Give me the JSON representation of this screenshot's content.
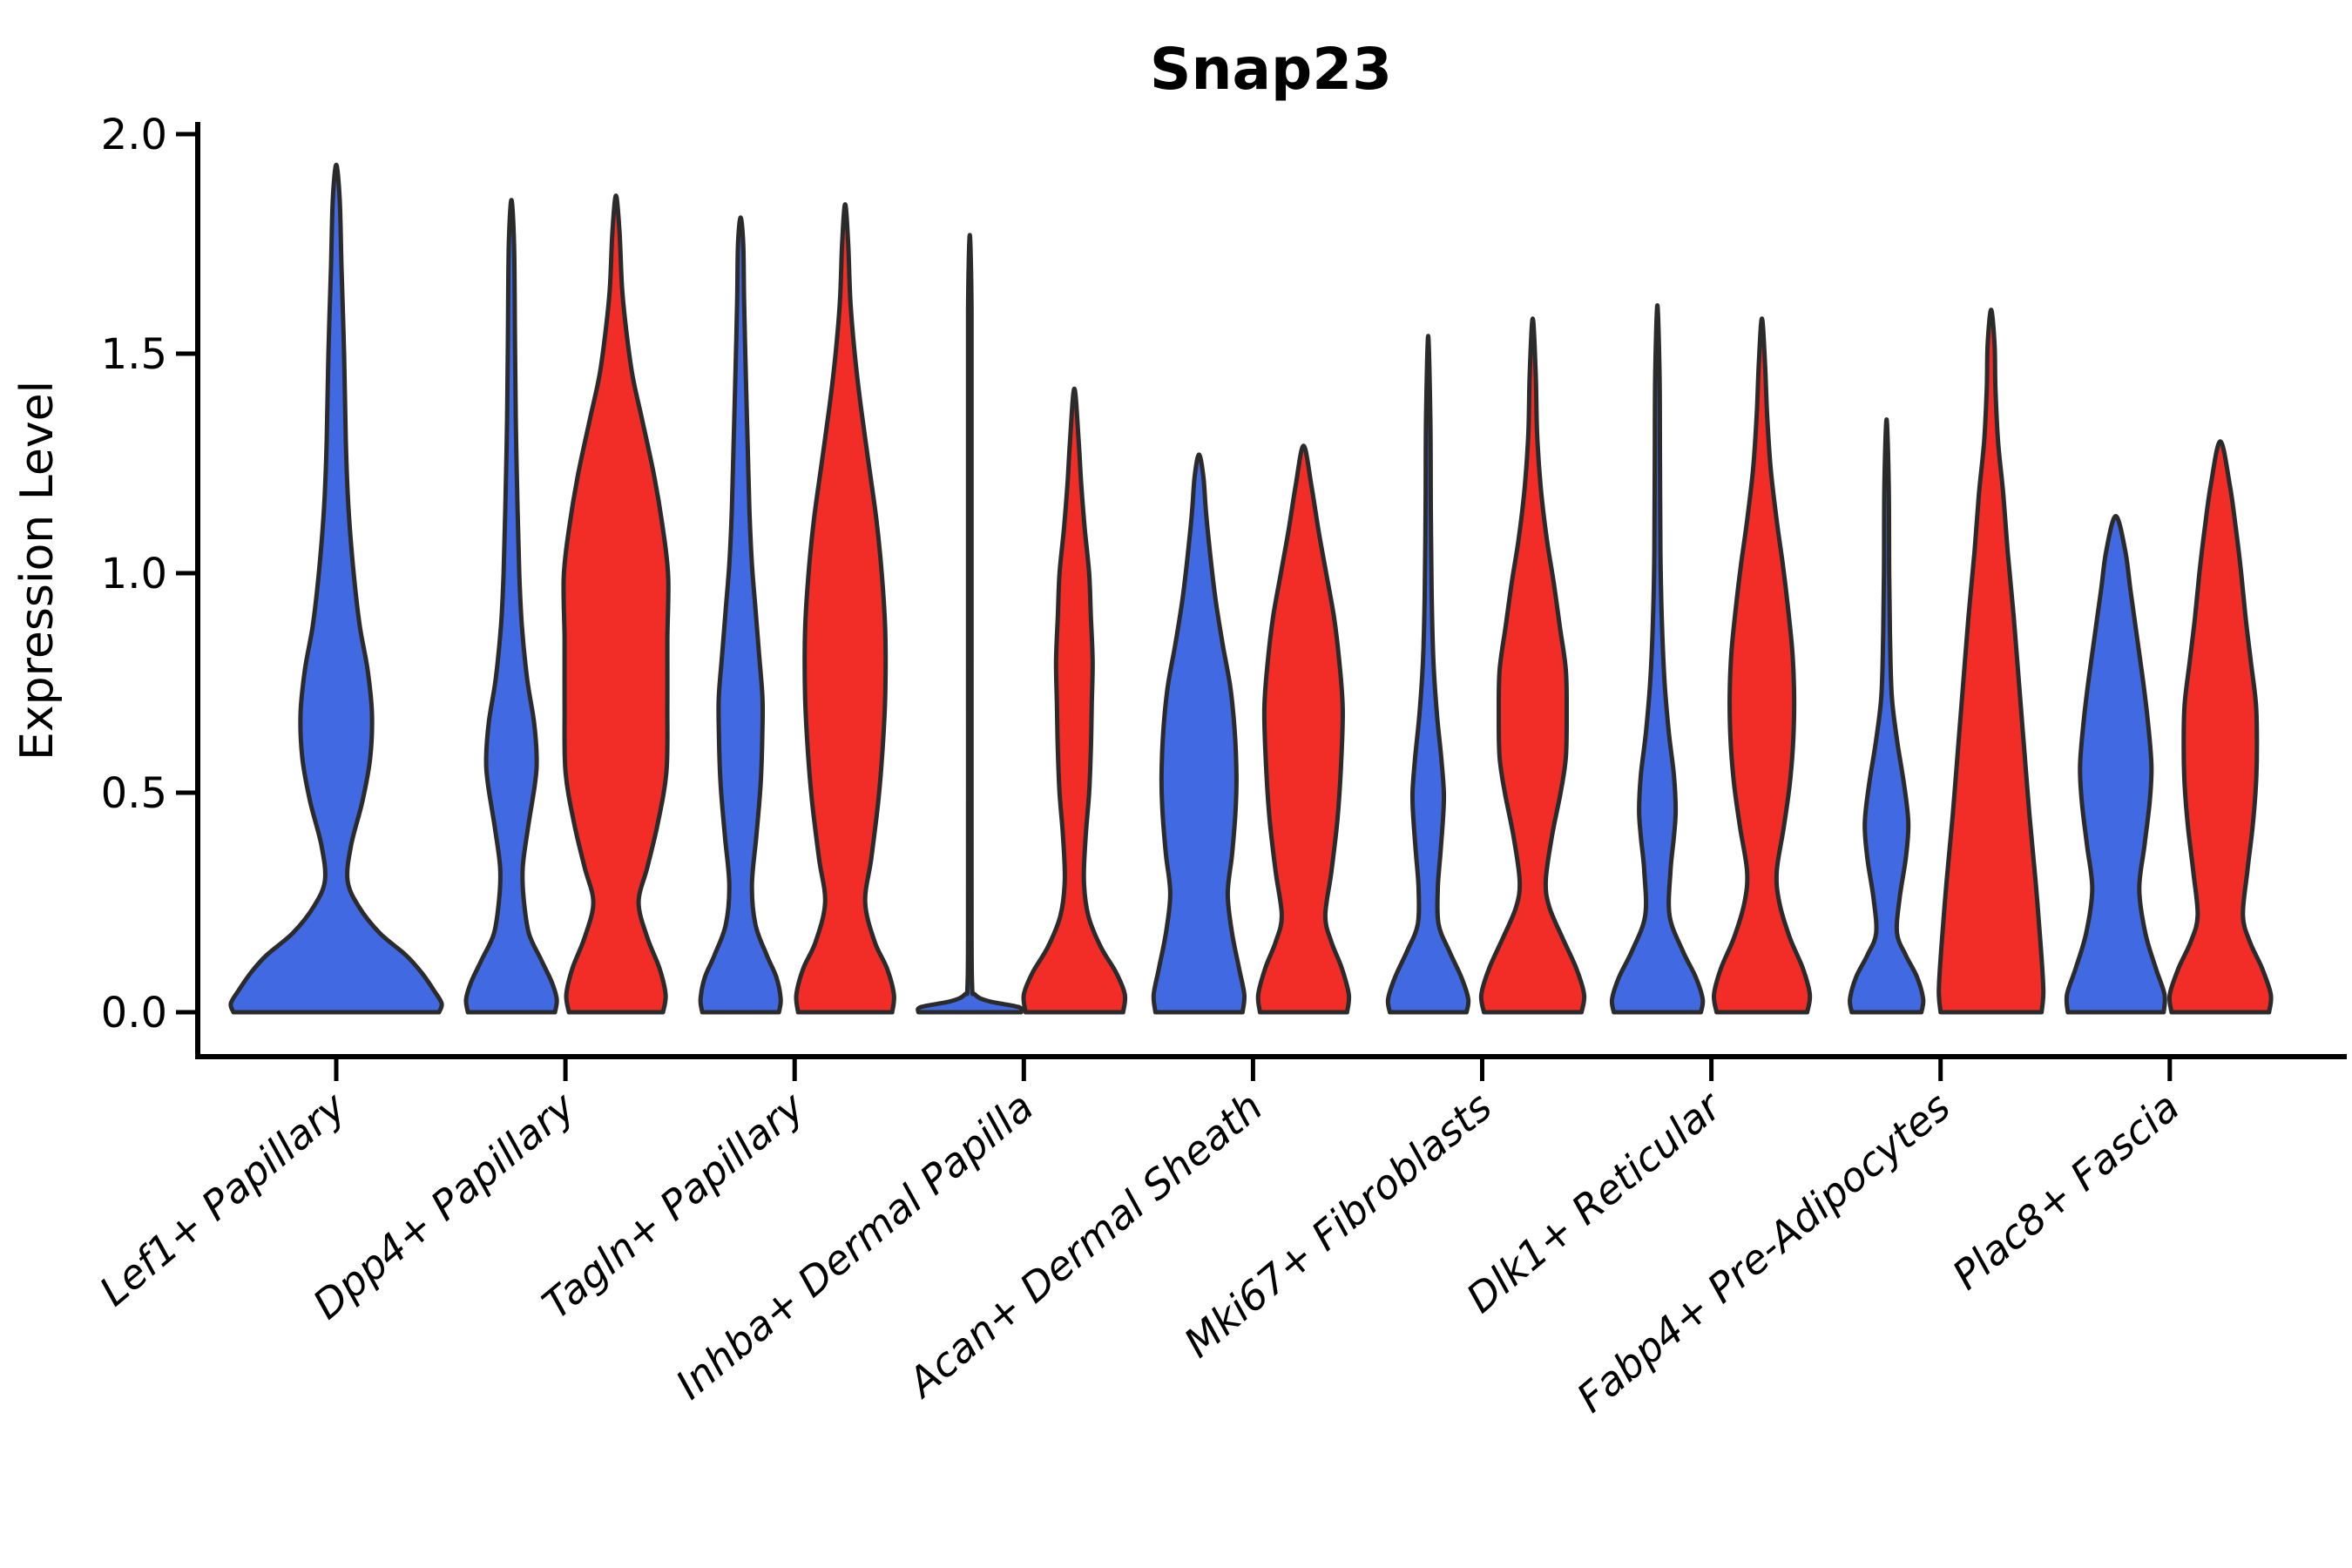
{
  "chart_data": {
    "type": "violin",
    "title": "Snap23",
    "ylabel": "Expression Level",
    "ylim": [
      0.0,
      2.0
    ],
    "yticks": [
      0.0,
      0.5,
      1.0,
      1.5,
      2.0
    ],
    "ytick_labels": [
      "0.0",
      "0.5",
      "1.0",
      "1.5",
      "2.0"
    ],
    "grid": false,
    "legend": "none",
    "categories": [
      "Lef1+ Papillary",
      "Dpp4+ Papillary",
      "Tagln+ Papillary",
      "Inhba+ Dermal Papilla",
      "Acan+ Dermal Sheath",
      "Mki67+ Fibroblasts",
      "Dlk1+ Reticular",
      "Fabp4+ Pre-Adipocytes",
      "Plac8+ Fascia"
    ],
    "series": [
      {
        "id": "blue",
        "color": "#4169E1"
      },
      {
        "id": "red",
        "color": "#F22C27"
      }
    ],
    "edge_color": "#2b2b2b",
    "violins": [
      {
        "category_index": 0,
        "series": "blue",
        "centered": true,
        "max_value": 1.93,
        "profile": [
          [
            0,
            118
          ],
          [
            0.02,
            121
          ],
          [
            0.05,
            112
          ],
          [
            0.09,
            98
          ],
          [
            0.13,
            80
          ],
          [
            0.18,
            50
          ],
          [
            0.24,
            26
          ],
          [
            0.3,
            13
          ],
          [
            0.38,
            17
          ],
          [
            0.48,
            30
          ],
          [
            0.58,
            39
          ],
          [
            0.68,
            41
          ],
          [
            0.78,
            36
          ],
          [
            0.88,
            27
          ],
          [
            1.0,
            20
          ],
          [
            1.15,
            14
          ],
          [
            1.3,
            11
          ],
          [
            1.5,
            9
          ],
          [
            1.7,
            6
          ],
          [
            1.85,
            4
          ],
          [
            1.93,
            0
          ]
        ]
      },
      {
        "category_index": 1,
        "series": "blue",
        "centered": false,
        "max_value": 1.85,
        "profile": [
          [
            0,
            50
          ],
          [
            0.03,
            52
          ],
          [
            0.07,
            46
          ],
          [
            0.12,
            34
          ],
          [
            0.18,
            20
          ],
          [
            0.26,
            14
          ],
          [
            0.33,
            13
          ],
          [
            0.42,
            19
          ],
          [
            0.52,
            27
          ],
          [
            0.58,
            29
          ],
          [
            0.66,
            26
          ],
          [
            0.76,
            18
          ],
          [
            0.88,
            12
          ],
          [
            1.0,
            9
          ],
          [
            1.15,
            7
          ],
          [
            1.35,
            5
          ],
          [
            1.55,
            4
          ],
          [
            1.75,
            3
          ],
          [
            1.85,
            0
          ]
        ]
      },
      {
        "category_index": 1,
        "series": "red",
        "centered": false,
        "max_value": 1.86,
        "profile": [
          [
            0,
            54
          ],
          [
            0.04,
            57
          ],
          [
            0.1,
            50
          ],
          [
            0.17,
            36
          ],
          [
            0.25,
            26
          ],
          [
            0.33,
            36
          ],
          [
            0.43,
            48
          ],
          [
            0.55,
            58
          ],
          [
            0.7,
            59
          ],
          [
            0.85,
            59
          ],
          [
            0.99,
            60
          ],
          [
            1.1,
            54
          ],
          [
            1.22,
            44
          ],
          [
            1.35,
            30
          ],
          [
            1.45,
            19
          ],
          [
            1.55,
            12
          ],
          [
            1.65,
            7
          ],
          [
            1.78,
            4
          ],
          [
            1.86,
            0
          ]
        ]
      },
      {
        "category_index": 2,
        "series": "blue",
        "centered": false,
        "max_value": 1.81,
        "profile": [
          [
            0,
            44
          ],
          [
            0.03,
            46
          ],
          [
            0.08,
            41
          ],
          [
            0.13,
            30
          ],
          [
            0.2,
            17
          ],
          [
            0.29,
            13
          ],
          [
            0.4,
            18
          ],
          [
            0.52,
            23
          ],
          [
            0.64,
            25
          ],
          [
            0.72,
            25
          ],
          [
            0.82,
            21
          ],
          [
            0.92,
            17
          ],
          [
            1.02,
            13
          ],
          [
            1.15,
            10
          ],
          [
            1.3,
            8
          ],
          [
            1.45,
            6
          ],
          [
            1.62,
            4
          ],
          [
            1.75,
            3
          ],
          [
            1.81,
            0
          ]
        ]
      },
      {
        "category_index": 2,
        "series": "red",
        "centered": false,
        "max_value": 1.84,
        "profile": [
          [
            0,
            54
          ],
          [
            0.04,
            56
          ],
          [
            0.1,
            48
          ],
          [
            0.16,
            34
          ],
          [
            0.25,
            23
          ],
          [
            0.35,
            30
          ],
          [
            0.48,
            38
          ],
          [
            0.6,
            43
          ],
          [
            0.72,
            46
          ],
          [
            0.87,
            46
          ],
          [
            1.0,
            42
          ],
          [
            1.12,
            36
          ],
          [
            1.25,
            27
          ],
          [
            1.38,
            18
          ],
          [
            1.5,
            11
          ],
          [
            1.62,
            6
          ],
          [
            1.75,
            3.5
          ],
          [
            1.84,
            0
          ]
        ]
      },
      {
        "category_index": 3,
        "series": "blue",
        "centered": false,
        "max_value": 1.77,
        "profile": [
          [
            0,
            59
          ],
          [
            0.012,
            56
          ],
          [
            0.025,
            22
          ],
          [
            0.04,
            6
          ],
          [
            0.07,
            2.5
          ],
          [
            0.3,
            2
          ],
          [
            0.8,
            2
          ],
          [
            1.3,
            2
          ],
          [
            1.6,
            2
          ],
          [
            1.77,
            0
          ]
        ]
      },
      {
        "category_index": 3,
        "series": "red",
        "centered": false,
        "max_value": 1.42,
        "profile": [
          [
            0,
            56
          ],
          [
            0.04,
            58
          ],
          [
            0.09,
            48
          ],
          [
            0.15,
            30
          ],
          [
            0.22,
            16
          ],
          [
            0.3,
            11
          ],
          [
            0.4,
            13
          ],
          [
            0.5,
            17
          ],
          [
            0.6,
            19
          ],
          [
            0.7,
            20
          ],
          [
            0.8,
            21
          ],
          [
            0.9,
            19
          ],
          [
            1.0,
            17
          ],
          [
            1.1,
            12
          ],
          [
            1.2,
            8
          ],
          [
            1.3,
            5
          ],
          [
            1.42,
            0
          ]
        ]
      },
      {
        "category_index": 4,
        "series": "blue",
        "centered": false,
        "max_value": 1.27,
        "profile": [
          [
            0,
            50
          ],
          [
            0.04,
            52
          ],
          [
            0.1,
            46
          ],
          [
            0.18,
            38
          ],
          [
            0.27,
            33
          ],
          [
            0.36,
            38
          ],
          [
            0.46,
            42
          ],
          [
            0.54,
            43
          ],
          [
            0.64,
            41
          ],
          [
            0.74,
            36
          ],
          [
            0.84,
            27
          ],
          [
            0.94,
            19
          ],
          [
            1.04,
            13
          ],
          [
            1.14,
            8
          ],
          [
            1.22,
            5
          ],
          [
            1.27,
            0
          ]
        ]
      },
      {
        "category_index": 4,
        "series": "red",
        "centered": false,
        "max_value": 1.29,
        "profile": [
          [
            0,
            50
          ],
          [
            0.04,
            52
          ],
          [
            0.1,
            44
          ],
          [
            0.16,
            32
          ],
          [
            0.22,
            25
          ],
          [
            0.32,
            32
          ],
          [
            0.44,
            39
          ],
          [
            0.56,
            43
          ],
          [
            0.69,
            45
          ],
          [
            0.8,
            41
          ],
          [
            0.9,
            35
          ],
          [
            1.0,
            26
          ],
          [
            1.1,
            17
          ],
          [
            1.2,
            9
          ],
          [
            1.29,
            0
          ]
        ]
      },
      {
        "category_index": 5,
        "series": "blue",
        "centered": false,
        "max_value": 1.54,
        "profile": [
          [
            0,
            44
          ],
          [
            0.03,
            46
          ],
          [
            0.08,
            38
          ],
          [
            0.14,
            24
          ],
          [
            0.2,
            12
          ],
          [
            0.28,
            11
          ],
          [
            0.36,
            14
          ],
          [
            0.44,
            17
          ],
          [
            0.5,
            18
          ],
          [
            0.58,
            15
          ],
          [
            0.68,
            10
          ],
          [
            0.8,
            6
          ],
          [
            0.95,
            4
          ],
          [
            1.15,
            3
          ],
          [
            1.35,
            2.5
          ],
          [
            1.54,
            0
          ]
        ]
      },
      {
        "category_index": 5,
        "series": "red",
        "centered": false,
        "max_value": 1.58,
        "profile": [
          [
            0,
            56
          ],
          [
            0.04,
            59
          ],
          [
            0.1,
            50
          ],
          [
            0.17,
            34
          ],
          [
            0.24,
            19
          ],
          [
            0.3,
            15
          ],
          [
            0.4,
            22
          ],
          [
            0.5,
            32
          ],
          [
            0.58,
            38
          ],
          [
            0.68,
            39
          ],
          [
            0.78,
            38
          ],
          [
            0.88,
            31
          ],
          [
            0.98,
            24
          ],
          [
            1.08,
            16
          ],
          [
            1.2,
            9
          ],
          [
            1.32,
            5
          ],
          [
            1.45,
            3.5
          ],
          [
            1.58,
            0
          ]
        ]
      },
      {
        "category_index": 6,
        "series": "blue",
        "centered": false,
        "max_value": 1.61,
        "profile": [
          [
            0,
            50
          ],
          [
            0.03,
            52
          ],
          [
            0.08,
            44
          ],
          [
            0.14,
            29
          ],
          [
            0.22,
            14
          ],
          [
            0.32,
            15
          ],
          [
            0.4,
            19
          ],
          [
            0.46,
            21
          ],
          [
            0.54,
            19
          ],
          [
            0.64,
            13
          ],
          [
            0.76,
            8
          ],
          [
            0.9,
            5
          ],
          [
            1.05,
            3.5
          ],
          [
            1.25,
            3
          ],
          [
            1.45,
            2.5
          ],
          [
            1.61,
            0
          ]
        ]
      },
      {
        "category_index": 6,
        "series": "red",
        "centered": false,
        "max_value": 1.58,
        "profile": [
          [
            0,
            52
          ],
          [
            0.04,
            55
          ],
          [
            0.1,
            47
          ],
          [
            0.17,
            32
          ],
          [
            0.25,
            20
          ],
          [
            0.32,
            17
          ],
          [
            0.42,
            25
          ],
          [
            0.52,
            32
          ],
          [
            0.62,
            36
          ],
          [
            0.72,
            37
          ],
          [
            0.82,
            35
          ],
          [
            0.92,
            30
          ],
          [
            1.02,
            24
          ],
          [
            1.12,
            17
          ],
          [
            1.24,
            10
          ],
          [
            1.36,
            6
          ],
          [
            1.48,
            3.5
          ],
          [
            1.58,
            0
          ]
        ]
      },
      {
        "category_index": 7,
        "series": "blue",
        "centered": false,
        "max_value": 1.35,
        "profile": [
          [
            0,
            40
          ],
          [
            0.03,
            42
          ],
          [
            0.08,
            35
          ],
          [
            0.13,
            22
          ],
          [
            0.18,
            12
          ],
          [
            0.26,
            15
          ],
          [
            0.35,
            22
          ],
          [
            0.43,
            25
          ],
          [
            0.52,
            20
          ],
          [
            0.62,
            12
          ],
          [
            0.72,
            6
          ],
          [
            0.85,
            4
          ],
          [
            1.0,
            3
          ],
          [
            1.2,
            2.5
          ],
          [
            1.35,
            0
          ]
        ]
      },
      {
        "category_index": 7,
        "series": "red",
        "centered": false,
        "max_value": 1.6,
        "profile": [
          [
            0,
            58
          ],
          [
            0.05,
            60
          ],
          [
            0.15,
            57
          ],
          [
            0.3,
            51
          ],
          [
            0.45,
            44
          ],
          [
            0.6,
            38
          ],
          [
            0.75,
            32
          ],
          [
            0.9,
            26
          ],
          [
            1.05,
            19
          ],
          [
            1.18,
            14
          ],
          [
            1.3,
            8
          ],
          [
            1.42,
            5
          ],
          [
            1.52,
            4
          ],
          [
            1.6,
            0
          ]
        ]
      },
      {
        "category_index": 8,
        "series": "blue",
        "centered": false,
        "max_value": 1.13,
        "profile": [
          [
            0,
            55
          ],
          [
            0.04,
            56
          ],
          [
            0.1,
            46
          ],
          [
            0.18,
            34
          ],
          [
            0.28,
            27
          ],
          [
            0.38,
            33
          ],
          [
            0.48,
            39
          ],
          [
            0.56,
            41
          ],
          [
            0.66,
            37
          ],
          [
            0.76,
            31
          ],
          [
            0.86,
            24
          ],
          [
            0.96,
            17
          ],
          [
            1.05,
            11
          ],
          [
            1.13,
            0
          ]
        ]
      },
      {
        "category_index": 8,
        "series": "red",
        "centered": false,
        "max_value": 1.3,
        "profile": [
          [
            0,
            56
          ],
          [
            0.04,
            58
          ],
          [
            0.1,
            48
          ],
          [
            0.16,
            34
          ],
          [
            0.22,
            26
          ],
          [
            0.32,
            31
          ],
          [
            0.42,
            37
          ],
          [
            0.52,
            41
          ],
          [
            0.6,
            42
          ],
          [
            0.7,
            41
          ],
          [
            0.8,
            35
          ],
          [
            0.9,
            29
          ],
          [
            1.0,
            24
          ],
          [
            1.1,
            18
          ],
          [
            1.2,
            11
          ],
          [
            1.3,
            0
          ]
        ]
      }
    ]
  }
}
